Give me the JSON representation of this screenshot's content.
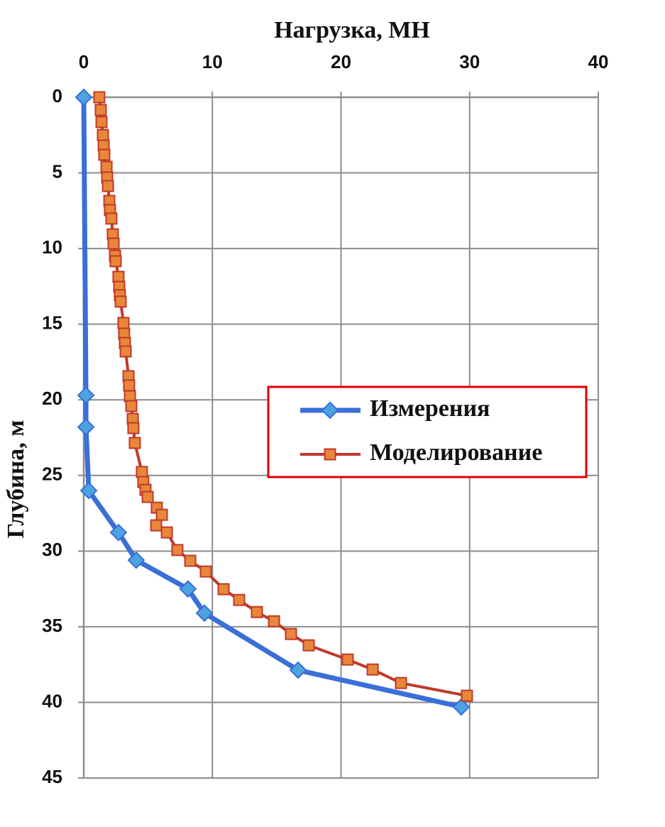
{
  "chart_data": {
    "type": "line",
    "xlabel": "Нагрузка, МН",
    "ylabel": "Глубина, м",
    "xlim": [
      0,
      40
    ],
    "xticks": [
      0,
      10,
      20,
      30,
      40
    ],
    "ylim": [
      0,
      45
    ],
    "yticks": [
      0,
      5,
      10,
      15,
      20,
      25,
      30,
      35,
      40,
      45
    ],
    "y_inverted": true,
    "x_axis_position": "top",
    "grid": true,
    "legend": "center-right",
    "series": [
      {
        "name": "Измерения",
        "color": "#3a6fd8",
        "marker": "diamond",
        "x": [
          0,
          0.17,
          0.17,
          0.39,
          2.7,
          4.08,
          8.1,
          9.38,
          16.66,
          29.35
        ],
        "values": [
          0,
          19.7,
          21.8,
          26.0,
          28.77,
          30.6,
          32.5,
          34.1,
          37.87,
          40.3
        ]
      },
      {
        "name": "Моделирование",
        "color": "#c0392b",
        "marker": "square",
        "x": [
          1.21,
          1.32,
          1.38,
          1.49,
          1.55,
          1.6,
          1.77,
          1.82,
          1.88,
          1.99,
          2.04,
          2.15,
          2.26,
          2.32,
          2.43,
          2.48,
          2.7,
          2.76,
          2.81,
          2.87,
          3.09,
          3.14,
          3.2,
          3.26,
          3.48,
          3.53,
          3.59,
          3.7,
          3.81,
          3.86,
          3.97,
          4.52,
          4.63,
          4.8,
          4.97,
          5.68,
          6.07,
          5.63,
          6.46,
          7.28,
          8.28,
          9.49,
          10.87,
          12.08,
          13.46,
          14.79,
          16.11,
          17.49,
          20.52,
          22.46,
          24.66,
          29.79
        ],
        "values": [
          0,
          0.84,
          1.64,
          2.49,
          3.19,
          3.8,
          4.6,
          5.3,
          5.87,
          6.85,
          7.46,
          8.02,
          9.06,
          9.67,
          10.47,
          10.84,
          11.87,
          12.53,
          13.09,
          13.51,
          14.92,
          15.63,
          16.24,
          16.8,
          18.44,
          19.05,
          19.76,
          20.41,
          21.26,
          21.87,
          22.85,
          24.77,
          25.43,
          25.95,
          26.42,
          27.13,
          27.6,
          28.3,
          28.77,
          29.93,
          30.64,
          31.35,
          32.52,
          33.23,
          34.03,
          34.64,
          35.48,
          36.23,
          37.17,
          37.83,
          38.72,
          39.56
        ]
      }
    ]
  }
}
